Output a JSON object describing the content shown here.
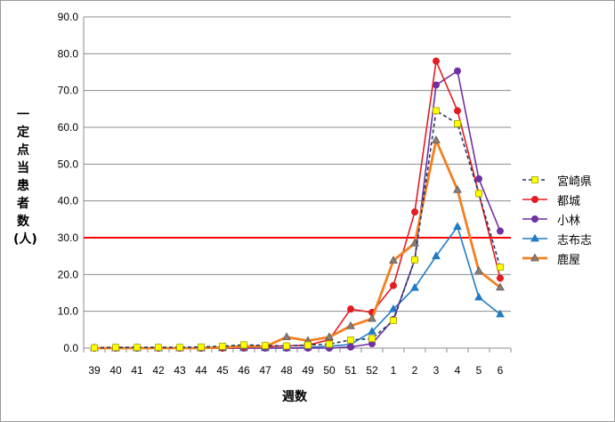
{
  "chart_data": {
    "type": "line",
    "ylabel": "一定点当患者数(人)",
    "xlabel": "週数",
    "categories": [
      "39",
      "40",
      "41",
      "42",
      "43",
      "44",
      "45",
      "46",
      "47",
      "48",
      "49",
      "50",
      "51",
      "52",
      "1",
      "2",
      "3",
      "4",
      "5",
      "6"
    ],
    "ylim": [
      0,
      90
    ],
    "yticks": [
      "0.0",
      "10.0",
      "20.0",
      "30.0",
      "40.0",
      "50.0",
      "60.0",
      "70.0",
      "80.0",
      "90.0"
    ],
    "threshold": {
      "value": 30,
      "color": "#ff0000"
    },
    "grid": true,
    "legend_position": "right",
    "series": [
      {
        "name": "宮崎県",
        "color": "#1f3864",
        "marker": "square",
        "marker_fill": "#ffff00",
        "dashed": true,
        "values": [
          0.1,
          0.2,
          0.2,
          0.2,
          0.2,
          0.3,
          0.5,
          0.9,
          0.7,
          0.6,
          0.8,
          1.1,
          2.2,
          2.6,
          7.5,
          24.0,
          64.5,
          61.0,
          42.0,
          22.0
        ]
      },
      {
        "name": "都城",
        "color": "#e31b23",
        "marker": "circle",
        "values": [
          0.0,
          0.1,
          0.1,
          0.0,
          0.0,
          0.0,
          0.0,
          0.2,
          0.4,
          0.6,
          0.8,
          2.3,
          10.6,
          9.7,
          17.0,
          37.0,
          78.0,
          64.5,
          42.0,
          19.0
        ]
      },
      {
        "name": "小林",
        "color": "#7030a0",
        "marker": "circle",
        "values": [
          0.0,
          0.0,
          0.0,
          0.0,
          0.0,
          0.0,
          0.0,
          0.0,
          0.0,
          0.0,
          0.0,
          0.0,
          0.3,
          1.2,
          7.8,
          24.0,
          71.5,
          75.3,
          46.0,
          31.8
        ]
      },
      {
        "name": "志布志",
        "color": "#1f7bc4",
        "marker": "triangle",
        "values": [
          0.0,
          0.0,
          0.0,
          0.0,
          0.0,
          0.0,
          0.0,
          0.0,
          0.0,
          0.0,
          0.2,
          0.5,
          1.0,
          4.5,
          10.6,
          16.4,
          25.0,
          33.0,
          13.8,
          9.2
        ]
      },
      {
        "name": "鹿屋",
        "color": "#f28021",
        "marker": "triangle",
        "marker_fill": "#8c7f7a",
        "thick": true,
        "values": [
          0.0,
          0.0,
          0.0,
          0.0,
          0.0,
          0.0,
          0.2,
          0.5,
          0.4,
          3.0,
          2.0,
          3.0,
          6.0,
          8.0,
          23.8,
          28.5,
          56.5,
          43.0,
          21.0,
          16.5
        ]
      }
    ]
  }
}
